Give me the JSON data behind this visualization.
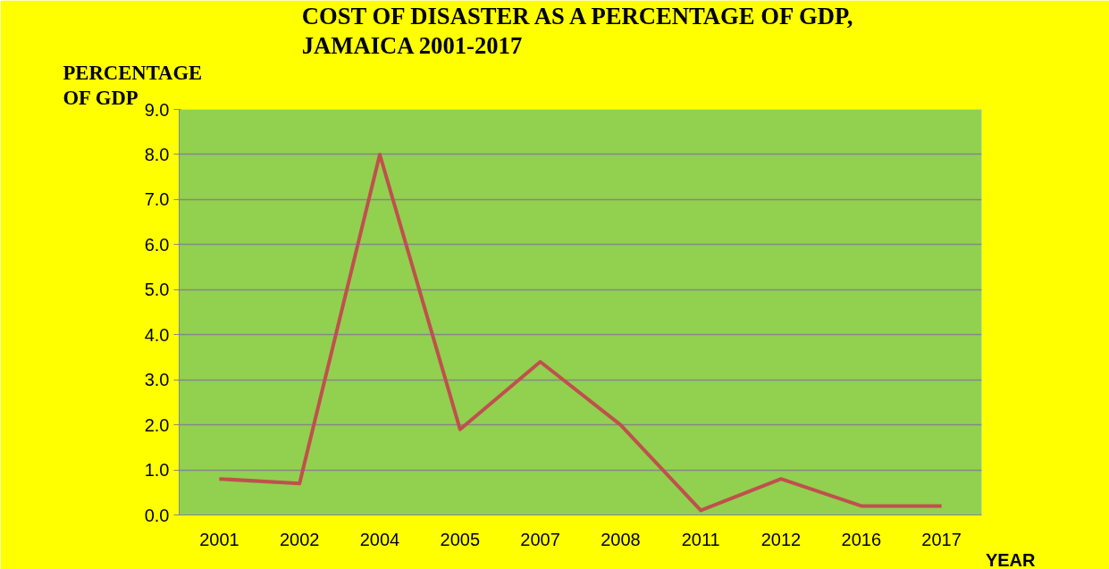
{
  "chart_data": {
    "type": "line",
    "title": "COST OF DISASTER AS A PERCENTAGE OF GDP, JAMAICA 2001-2017",
    "ylabel": "PERCENTAGE OF GDP",
    "xlabel": "YEAR",
    "categories": [
      "2001",
      "2002",
      "2004",
      "2005",
      "2007",
      "2008",
      "2011",
      "2012",
      "2016",
      "2017"
    ],
    "series": [
      {
        "color": "#c0504d",
        "values": [
          0.8,
          0.7,
          8.0,
          1.9,
          3.4,
          2.0,
          0.1,
          0.8,
          0.2,
          0.2
        ]
      }
    ],
    "ylim": [
      0,
      9
    ],
    "yticks": [
      {
        "value": 0,
        "label": "0.0"
      },
      {
        "value": 1,
        "label": "1.0"
      },
      {
        "value": 2,
        "label": "2.0"
      },
      {
        "value": 3,
        "label": "3.0"
      },
      {
        "value": 4,
        "label": "4.0"
      },
      {
        "value": 5,
        "label": "5.0"
      },
      {
        "value": 6,
        "label": "6.0"
      },
      {
        "value": 7,
        "label": "7.0"
      },
      {
        "value": 8,
        "label": "8.0"
      },
      {
        "value": 9,
        "label": "9.0"
      }
    ],
    "grid": "y",
    "marker": "none",
    "line_style": "solid"
  }
}
